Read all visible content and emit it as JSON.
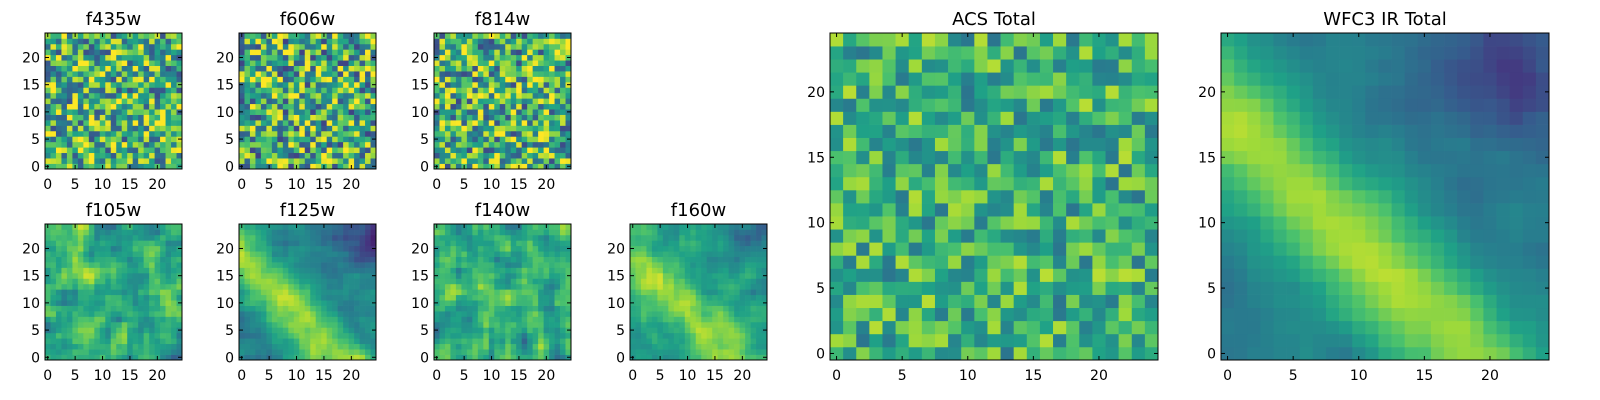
{
  "figure": {
    "palette": [
      "#440154",
      "#46327e",
      "#365c8d",
      "#277f8e",
      "#1fa187",
      "#4ac16d",
      "#a0da39",
      "#fde725"
    ]
  },
  "chart_data": [
    {
      "id": "f435w",
      "type": "heatmap",
      "title": "f435w",
      "xlabel": "",
      "ylabel": "",
      "grid_size": 25,
      "xlim": [
        0,
        24
      ],
      "ylim": [
        0,
        24
      ],
      "xticks": [
        0,
        5,
        10,
        15,
        20
      ],
      "yticks": [
        0,
        5,
        10,
        15,
        20
      ],
      "pattern": "noise",
      "seed": 11,
      "mean": 0.66,
      "contrast": 0.26
    },
    {
      "id": "f606w",
      "type": "heatmap",
      "title": "f606w",
      "xlabel": "",
      "ylabel": "",
      "grid_size": 25,
      "xlim": [
        0,
        24
      ],
      "ylim": [
        0,
        24
      ],
      "xticks": [
        0,
        5,
        10,
        15,
        20
      ],
      "yticks": [
        0,
        5,
        10,
        15,
        20
      ],
      "pattern": "noise",
      "seed": 23,
      "mean": 0.63,
      "contrast": 0.27
    },
    {
      "id": "f814w",
      "type": "heatmap",
      "title": "f814w",
      "xlabel": "",
      "ylabel": "",
      "grid_size": 25,
      "xlim": [
        0,
        24
      ],
      "ylim": [
        0,
        24
      ],
      "xticks": [
        0,
        5,
        10,
        15,
        20
      ],
      "yticks": [
        0,
        5,
        10,
        15,
        20
      ],
      "pattern": "noise",
      "seed": 37,
      "mean": 0.64,
      "contrast": 0.26
    },
    {
      "id": "f105w",
      "type": "heatmap",
      "title": "f105w",
      "xlabel": "",
      "ylabel": "",
      "grid_size": 25,
      "xlim": [
        0,
        24
      ],
      "ylim": [
        0,
        24
      ],
      "xticks": [
        0,
        5,
        10,
        15,
        20
      ],
      "yticks": [
        0,
        5,
        10,
        15,
        20
      ],
      "pattern": "smooth-noise",
      "seed": 41,
      "mean": 0.62,
      "contrast": 0.3
    },
    {
      "id": "f125w",
      "type": "heatmap",
      "title": "f125w",
      "xlabel": "",
      "ylabel": "",
      "grid_size": 25,
      "xlim": [
        0,
        24
      ],
      "ylim": [
        0,
        24
      ],
      "xticks": [
        0,
        5,
        10,
        15,
        20
      ],
      "yticks": [
        0,
        5,
        10,
        15,
        20
      ],
      "pattern": "diagonal-band",
      "seed": 53,
      "mean": 0.45,
      "contrast": 0.14,
      "band_strength": 0.42
    },
    {
      "id": "f140w",
      "type": "heatmap",
      "title": "f140w",
      "xlabel": "",
      "ylabel": "",
      "grid_size": 25,
      "xlim": [
        0,
        24
      ],
      "ylim": [
        0,
        24
      ],
      "xticks": [
        0,
        5,
        10,
        15,
        20
      ],
      "yticks": [
        0,
        5,
        10,
        15,
        20
      ],
      "pattern": "smooth-noise",
      "seed": 67,
      "mean": 0.62,
      "contrast": 0.3
    },
    {
      "id": "f160w",
      "type": "heatmap",
      "title": "f160w",
      "xlabel": "",
      "ylabel": "",
      "grid_size": 25,
      "xlim": [
        0,
        24
      ],
      "ylim": [
        0,
        24
      ],
      "xticks": [
        0,
        5,
        10,
        15,
        20
      ],
      "yticks": [
        0,
        5,
        10,
        15,
        20
      ],
      "pattern": "diagonal-band",
      "seed": 79,
      "mean": 0.55,
      "contrast": 0.16,
      "band_strength": 0.3
    },
    {
      "id": "acs-total",
      "type": "heatmap",
      "title": "ACS Total",
      "xlabel": "",
      "ylabel": "",
      "grid_size": 25,
      "xlim": [
        0,
        24
      ],
      "ylim": [
        0,
        24
      ],
      "xticks": [
        0,
        5,
        10,
        15,
        20
      ],
      "yticks": [
        0,
        5,
        10,
        15,
        20
      ],
      "pattern": "noise",
      "seed": 97,
      "mean": 0.64,
      "contrast": 0.16
    },
    {
      "id": "wfc3-ir-total",
      "type": "heatmap",
      "title": "WFC3 IR Total",
      "xlabel": "",
      "ylabel": "",
      "grid_size": 25,
      "xlim": [
        0,
        24
      ],
      "ylim": [
        0,
        24
      ],
      "xticks": [
        0,
        5,
        10,
        15,
        20
      ],
      "yticks": [
        0,
        5,
        10,
        15,
        20
      ],
      "pattern": "diagonal-band",
      "seed": 101,
      "mean": 0.42,
      "contrast": 0.07,
      "band_strength": 0.45
    }
  ]
}
